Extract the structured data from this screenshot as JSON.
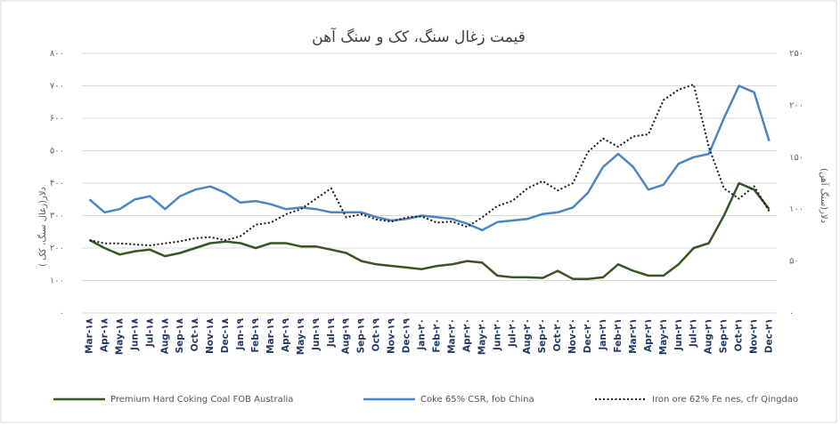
{
  "chart_data": {
    "type": "line",
    "title": "قیمت زغال سنگ، کک و سنگ آهن",
    "ylabel": "دلار(زغال سنگ، کک )",
    "y2label": "دلار(سنگ آهن)",
    "categories": [
      "Mar-۱۸",
      "Apr-۱۸",
      "May-۱۸",
      "Jun-۱۸",
      "Jul-۱۸",
      "Aug-۱۸",
      "Sep-۱۸",
      "Oct-۱۸",
      "Nov-۱۸",
      "Dec-۱۸",
      "Jan-۱۹",
      "Feb-۱۹",
      "Mar-۱۹",
      "Apr-۱۹",
      "May-۱۹",
      "Jun-۱۹",
      "Jul-۱۹",
      "Aug-۱۹",
      "Sep-۱۹",
      "Oct-۱۹",
      "Nov-۱۹",
      "Dec-۱۹",
      "Jan-۲۰",
      "Feb-۲۰",
      "Mar-۲۰",
      "Apr-۲۰",
      "May-۲۰",
      "Jun-۲۰",
      "Jul-۲۰",
      "Aug-۲۰",
      "Sep-۲۰",
      "Oct-۲۰",
      "Nov-۲۰",
      "Dec-۲۰",
      "Jan-۲۱",
      "Feb-۲۱",
      "Mar-۲۱",
      "Apr-۲۱",
      "May-۲۱",
      "Jun-۲۱",
      "Jul-۲۱",
      "Aug-۲۱",
      "Sep-۲۱",
      "Oct-۲۱",
      "Nov-۲۱",
      "Dec-۲۱"
    ],
    "series": [
      {
        "name": "Premium Hard Coking Coal FOB Australia",
        "color": "#375623",
        "dash": "solid",
        "values": [
          225,
          200,
          180,
          190,
          195,
          175,
          185,
          200,
          215,
          220,
          215,
          200,
          215,
          215,
          205,
          205,
          195,
          185,
          160,
          150,
          145,
          140,
          135,
          145,
          150,
          160,
          155,
          115,
          110,
          110,
          108,
          130,
          105,
          105,
          110,
          150,
          130,
          115,
          115,
          150,
          200,
          215,
          300,
          400,
          380,
          320
        ]
      },
      {
        "name": "Coke 65% CSR, fob China",
        "color": "#4a86c5",
        "dash": "solid",
        "values": [
          350,
          310,
          320,
          350,
          360,
          320,
          360,
          380,
          390,
          370,
          340,
          345,
          335,
          320,
          325,
          320,
          310,
          310,
          310,
          295,
          285,
          290,
          300,
          295,
          290,
          275,
          255,
          280,
          285,
          290,
          305,
          310,
          325,
          370,
          450,
          490,
          450,
          380,
          395,
          460,
          480,
          490,
          600,
          700,
          680,
          530
        ]
      },
      {
        "name": "Iron ore 62% Fe nes, cfr Qingdao",
        "color": "#1a1a1a",
        "dash": "dotted",
        "axis": "y2",
        "values": [
          70,
          67,
          67,
          66,
          65,
          67,
          69,
          72,
          73,
          70,
          74,
          85,
          87,
          95,
          100,
          110,
          120,
          92,
          95,
          90,
          88,
          92,
          93,
          87,
          88,
          83,
          92,
          103,
          108,
          120,
          127,
          118,
          125,
          155,
          168,
          160,
          170,
          172,
          205,
          215,
          220,
          160,
          120,
          110,
          122,
          98
        ]
      }
    ],
    "ylim": [
      0,
      800
    ],
    "yticks": [
      {
        "value": 0,
        "label": "۰"
      },
      {
        "value": 100,
        "label": "۱۰۰"
      },
      {
        "value": 200,
        "label": "۲۰۰"
      },
      {
        "value": 300,
        "label": "۳۰۰"
      },
      {
        "value": 400,
        "label": "۴۰۰"
      },
      {
        "value": 500,
        "label": "۵۰۰"
      },
      {
        "value": 600,
        "label": "۶۰۰"
      },
      {
        "value": 700,
        "label": "۷۰۰"
      },
      {
        "value": 800,
        "label": "۸۰۰"
      }
    ],
    "y2lim": [
      0,
      250
    ],
    "y2ticks": [
      {
        "value": 0,
        "label": "۰"
      },
      {
        "value": 50,
        "label": "۵۰"
      },
      {
        "value": 100,
        "label": "۱۰۰"
      },
      {
        "value": 150,
        "label": "۱۵۰"
      },
      {
        "value": 200,
        "label": "۲۰۰"
      },
      {
        "value": 250,
        "label": "۲۵۰"
      }
    ],
    "grid": true,
    "legend": "bottom"
  }
}
